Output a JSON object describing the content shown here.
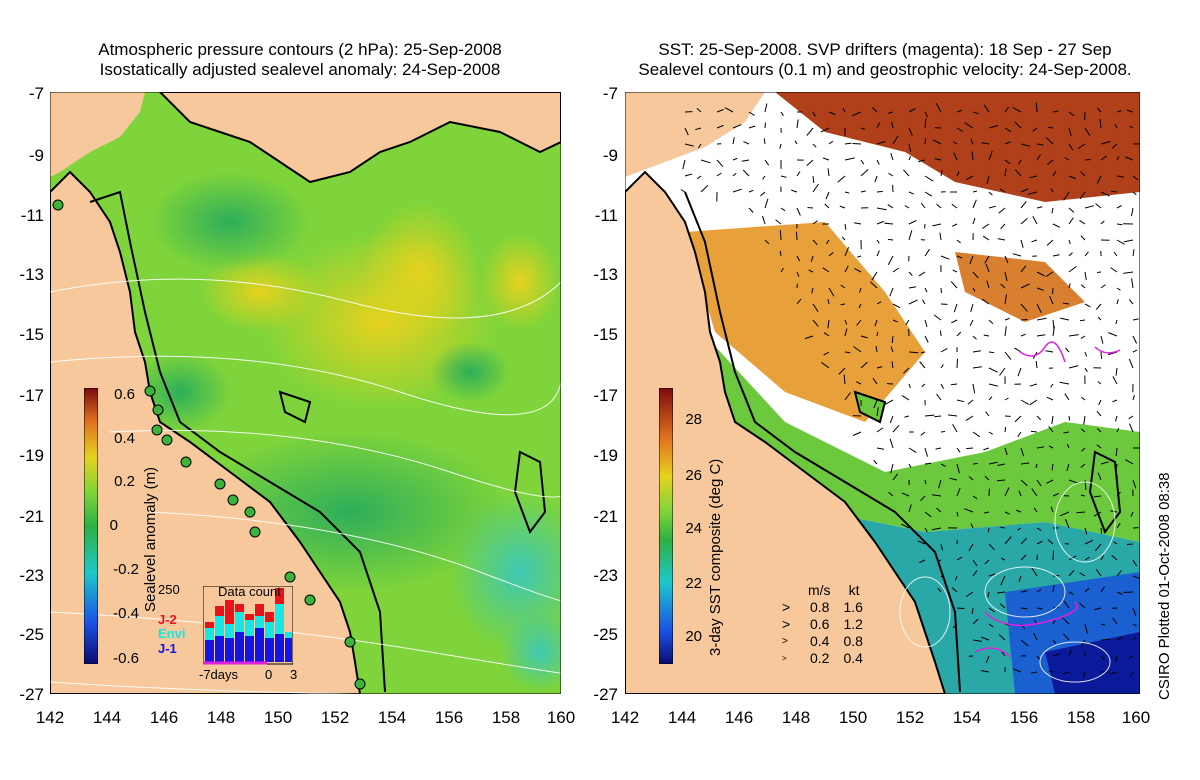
{
  "left_panel": {
    "title_line1": "Atmospheric pressure contours (2 hPa): 25-Sep-2008",
    "title_line2": "Isostatically adjusted sealevel anomaly: 24-Sep-2008",
    "colorbar_label": "Sealevel anomaly (m)",
    "colorbar_ticks": [
      "0.6",
      "0.4",
      "0.2",
      "0",
      "-0.2",
      "-0.4",
      "-0.6"
    ],
    "colorbar_range": [
      -0.6,
      0.6
    ],
    "inset": {
      "title": "Data count",
      "ymax_label": "250",
      "legend": [
        {
          "label": "J-2",
          "color": "#e8141b"
        },
        {
          "label": "Envi",
          "color": "#17e6e6"
        },
        {
          "label": "J-1",
          "color": "#1414e6"
        }
      ],
      "xlabels": [
        "-7days",
        "0",
        "3"
      ]
    }
  },
  "right_panel": {
    "title_line1": "SST: 25-Sep-2008. SVP drifters (magenta): 18 Sep - 27 Sep",
    "title_line2": "Sealevel contours (0.1 m) and geostrophic velocity: 24-Sep-2008.",
    "colorbar_label": "3-day SST composite (deg C)",
    "colorbar_ticks": [
      "28",
      "26",
      "24",
      "22",
      "20"
    ],
    "colorbar_range": [
      19,
      29
    ],
    "velocity_legend": {
      "header_ms": "m/s",
      "header_kt": "kt",
      "rows": [
        {
          "ms": "0.8",
          "kt": "1.6"
        },
        {
          "ms": "0.6",
          "kt": "1.2"
        },
        {
          "ms": "0.4",
          "kt": "0.8"
        },
        {
          "ms": "0.2",
          "kt": "0.4"
        }
      ]
    }
  },
  "axes": {
    "y_ticks": [
      "-7",
      "-9",
      "-11",
      "-13",
      "-15",
      "-17",
      "-19",
      "-21",
      "-23",
      "-25",
      "-27"
    ],
    "x_ticks_left": [
      "142",
      "144",
      "146",
      "148",
      "150",
      "152",
      "154",
      "156",
      "158",
      "160"
    ],
    "x_ticks_right": [
      "142",
      "144",
      "146",
      "148",
      "150",
      "152",
      "154",
      "156",
      "158",
      "160"
    ],
    "lat_range": [
      -27,
      -7
    ],
    "lon_range": [
      142,
      160
    ]
  },
  "credit": "CSIRO Plotted 01-Oct-2008 08:38",
  "colors": {
    "land": "#f7c89b",
    "ocean_green": "#6cc83c",
    "warm_orange": "#e8a03a",
    "coastline": "#000000"
  }
}
